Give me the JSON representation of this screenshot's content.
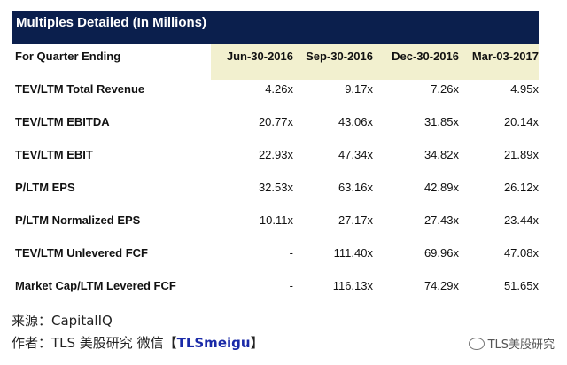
{
  "table": {
    "title": "Multiples Detailed (In Millions)",
    "header_label": "For Quarter Ending",
    "columns": [
      "Jun-30-2016",
      "Sep-30-2016",
      "Dec-30-2016",
      "Mar-03-2017"
    ],
    "rows": [
      {
        "label": "TEV/LTM Total Revenue",
        "values": [
          "4.26x",
          "9.17x",
          "7.26x",
          "4.95x"
        ]
      },
      {
        "label": "TEV/LTM EBITDA",
        "values": [
          "20.77x",
          "43.06x",
          "31.85x",
          "20.14x"
        ]
      },
      {
        "label": "TEV/LTM EBIT",
        "values": [
          "22.93x",
          "47.34x",
          "34.82x",
          "21.89x"
        ]
      },
      {
        "label": "P/LTM EPS",
        "values": [
          "32.53x",
          "63.16x",
          "42.89x",
          "26.12x"
        ]
      },
      {
        "label": "P/LTM Normalized EPS",
        "values": [
          "10.11x",
          "27.17x",
          "27.43x",
          "23.44x"
        ]
      },
      {
        "label": "TEV/LTM Unlevered FCF",
        "values": [
          "-",
          "111.40x",
          "69.96x",
          "47.08x"
        ]
      },
      {
        "label": "Market Cap/LTM Levered FCF",
        "values": [
          "-",
          "116.13x",
          "74.29x",
          "51.65x"
        ]
      }
    ]
  },
  "footer": {
    "source": "来源：CapitalIQ",
    "author_prefix": "作者：TLS 美股研究 微信【",
    "author_tag": "TLSmeigu",
    "author_suffix": "】"
  },
  "watermark": {
    "text": "TLS美股研究",
    "icon": "wechat-icon"
  },
  "colors": {
    "title_bg": "#0b1f4d",
    "header_bg": "#f2f0cf",
    "tag": "#1a2aa8"
  }
}
